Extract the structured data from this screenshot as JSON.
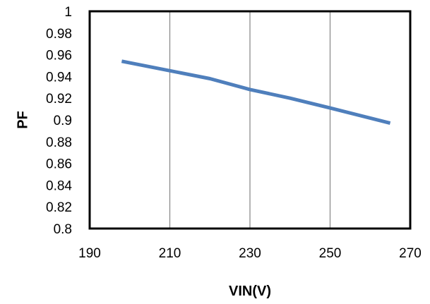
{
  "chart_data": {
    "type": "line",
    "title": "",
    "xlabel": "VIN(V)",
    "ylabel": "PF",
    "xlim": [
      190,
      270
    ],
    "ylim": [
      0.8,
      1.0
    ],
    "x_ticks": [
      190,
      210,
      230,
      250,
      270
    ],
    "x_tick_labels": [
      "190",
      "210",
      "230",
      "250",
      "270"
    ],
    "y_ticks": [
      0.8,
      0.82,
      0.84,
      0.86,
      0.88,
      0.9,
      0.92,
      0.94,
      0.96,
      0.98,
      1.0
    ],
    "y_tick_labels": [
      "0.8",
      "0.82",
      "0.84",
      "0.86",
      "0.88",
      "0.9",
      "0.92",
      "0.94",
      "0.96",
      "0.98",
      "1"
    ],
    "grid": "vertical",
    "legend": "none",
    "series": [
      {
        "color": "#4f7fbc",
        "x": [
          198,
          220,
          230,
          240,
          250,
          265
        ],
        "y": [
          0.954,
          0.938,
          0.928,
          0.92,
          0.911,
          0.897
        ]
      }
    ]
  }
}
